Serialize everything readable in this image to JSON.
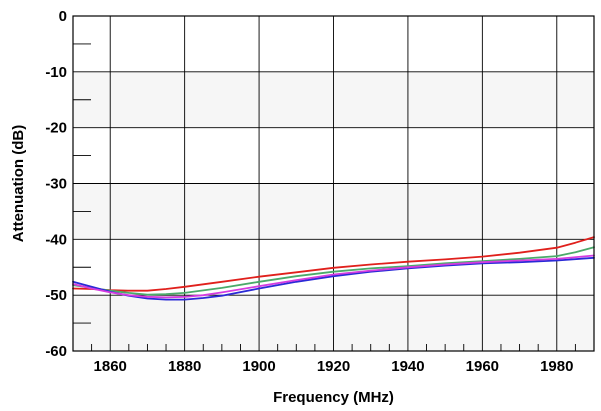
{
  "chart_data": {
    "type": "line",
    "title": "",
    "xlabel": "Frequency (MHz)",
    "ylabel": "Attenuation (dB)",
    "xlim": [
      1850,
      1990
    ],
    "ylim": [
      -60,
      0
    ],
    "x_ticks": [
      1860,
      1880,
      1900,
      1920,
      1940,
      1960,
      1980
    ],
    "y_ticks": [
      0,
      -10,
      -20,
      -30,
      -40,
      -50,
      -60
    ],
    "grid": true,
    "legend": "none",
    "series": [
      {
        "color": "#e0201c",
        "x": [
          1850,
          1855,
          1860,
          1865,
          1870,
          1875,
          1880,
          1890,
          1900,
          1910,
          1920,
          1930,
          1940,
          1950,
          1960,
          1970,
          1980,
          1985,
          1990
        ],
        "y": [
          -48.8,
          -48.9,
          -49.1,
          -49.2,
          -49.2,
          -48.9,
          -48.5,
          -47.6,
          -46.7,
          -45.9,
          -45.1,
          -44.5,
          -44.0,
          -43.6,
          -43.1,
          -42.4,
          -41.5,
          -40.6,
          -39.6
        ]
      },
      {
        "color": "#4aaa6a",
        "x": [
          1850,
          1855,
          1860,
          1865,
          1870,
          1875,
          1880,
          1890,
          1900,
          1910,
          1920,
          1930,
          1940,
          1950,
          1960,
          1970,
          1980,
          1985,
          1990
        ],
        "y": [
          -48.2,
          -48.7,
          -49.2,
          -49.6,
          -49.9,
          -49.8,
          -49.6,
          -48.7,
          -47.6,
          -46.6,
          -45.8,
          -45.2,
          -44.8,
          -44.3,
          -43.9,
          -43.5,
          -43.0,
          -42.3,
          -41.4
        ]
      },
      {
        "color": "#2a2ad6",
        "x": [
          1850,
          1855,
          1860,
          1865,
          1870,
          1875,
          1880,
          1885,
          1890,
          1900,
          1910,
          1920,
          1930,
          1940,
          1950,
          1960,
          1970,
          1980,
          1990
        ],
        "y": [
          -47.6,
          -48.5,
          -49.4,
          -50.1,
          -50.6,
          -50.8,
          -50.8,
          -50.5,
          -50.1,
          -48.8,
          -47.6,
          -46.6,
          -45.8,
          -45.2,
          -44.7,
          -44.3,
          -44.1,
          -43.8,
          -43.3
        ]
      },
      {
        "color": "#d43ce0",
        "x": [
          1850,
          1855,
          1860,
          1865,
          1870,
          1875,
          1880,
          1885,
          1890,
          1900,
          1910,
          1920,
          1930,
          1940,
          1950,
          1960,
          1970,
          1980,
          1990
        ],
        "y": [
          -48.0,
          -48.8,
          -49.5,
          -50.0,
          -50.3,
          -50.4,
          -50.3,
          -50.0,
          -49.5,
          -48.4,
          -47.3,
          -46.3,
          -45.6,
          -45.0,
          -44.5,
          -44.1,
          -43.8,
          -43.5,
          -42.9
        ]
      }
    ]
  }
}
